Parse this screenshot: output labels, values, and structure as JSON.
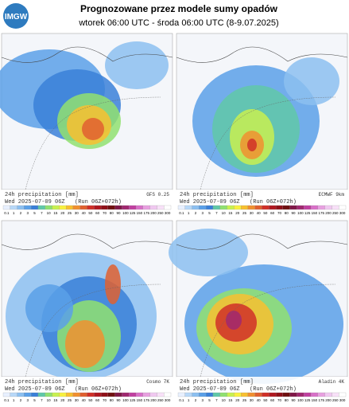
{
  "header": {
    "logo": "IMGW",
    "title": "Prognozowane przez modele sumy opadów",
    "subtitle": "wtorek 06:00 UTC - środa 06:00 UTC (8-9.07.2025)"
  },
  "panels": [
    {
      "label": "24h precipitation",
      "unit": "[mm]",
      "model": "GFS 0.25",
      "valid": "Wed 2025-07-09 06Z",
      "run": "(Run 06Z+072h)"
    },
    {
      "label": "24h precipitation",
      "unit": "[mm]",
      "model": "ECMWF 9km",
      "valid": "Wed 2025-07-09 06Z",
      "run": "(Run 06Z+072h)"
    },
    {
      "label": "24h precipitation",
      "unit": "[mm]",
      "model": "Cosmo 7K",
      "valid": "Wed 2025-07-09 06Z",
      "run": "(Run 06Z+072h)"
    },
    {
      "label": "24h precipitation",
      "unit": "[mm]",
      "model": "Aladin 4K",
      "valid": "Wed 2025-07-09 06Z",
      "run": "(Run 06Z+072h)"
    }
  ],
  "legend": {
    "levels": [
      0.1,
      1,
      2,
      3,
      5,
      7,
      10,
      15,
      20,
      25,
      30,
      40,
      50,
      60,
      70,
      80,
      90,
      100,
      125,
      150,
      175,
      200,
      250,
      300
    ]
  }
}
